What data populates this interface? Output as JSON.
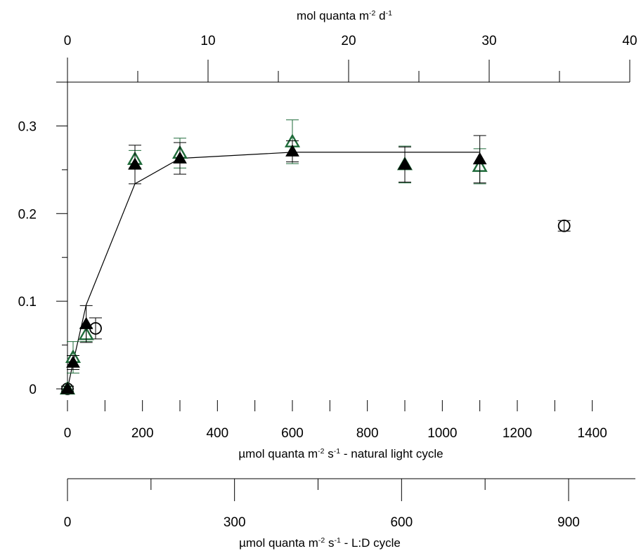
{
  "chart_data": {
    "type": "scatter",
    "title": "",
    "y_axis": {
      "ticks": [
        0,
        0.1,
        0.2,
        0.3
      ],
      "tick_labels": [
        "0",
        "0.1",
        "0.2",
        "0.3"
      ],
      "ylim": [
        0,
        0.35
      ]
    },
    "x_axis_natural": {
      "label": "µmol quanta m-2 s-1 - natural light cycle",
      "xlim": [
        0,
        1500
      ],
      "ticks": [
        0,
        200,
        400,
        600,
        800,
        1000,
        1200,
        1400
      ],
      "tick_labels": [
        "0",
        "200",
        "400",
        "600",
        "800",
        "1000",
        "1200",
        "1400"
      ]
    },
    "x_axis_top": {
      "label": "mol quanta m-2 d-1",
      "ticks": [
        0,
        10,
        20,
        30,
        40
      ],
      "tick_labels": [
        "0",
        "10",
        "20",
        "30",
        "40"
      ]
    },
    "x_axis_ld": {
      "label": "µmol quanta m-2 s-1 - L:D cycle",
      "ticks": [
        0,
        300,
        600,
        900
      ],
      "tick_labels": [
        "0",
        "300",
        "600",
        "900"
      ]
    },
    "series": [
      {
        "marker": "filled-triangle",
        "color": "#000000",
        "x": [
          0,
          15,
          50,
          180,
          300,
          600,
          900,
          1100
        ],
        "y": [
          0.0,
          0.03,
          0.074,
          0.256,
          0.263,
          0.271,
          0.256,
          0.262
        ],
        "err": [
          0.003,
          0.008,
          0.021,
          0.022,
          0.018,
          0.012,
          0.02,
          0.027
        ]
      },
      {
        "marker": "open-triangle",
        "color": "#1f6b3a",
        "x": [
          0,
          15,
          50,
          180,
          300,
          600,
          900,
          1100
        ],
        "y": [
          0.0,
          0.036,
          0.062,
          0.262,
          0.269,
          0.282,
          0.256,
          0.254
        ],
        "err": [
          0.003,
          0.018,
          0.008,
          0.01,
          0.017,
          0.025,
          0.021,
          0.02
        ]
      },
      {
        "marker": "open-circle",
        "color": "#000000",
        "x": [
          0,
          75,
          1325
        ],
        "y": [
          0.0,
          0.069,
          0.186
        ],
        "err": [
          0.003,
          0.012,
          0.006
        ]
      }
    ],
    "fit_line": {
      "color": "#000000",
      "x": [
        0,
        15,
        50,
        180,
        300,
        600,
        900,
        1100
      ],
      "y": [
        0.0,
        0.03,
        0.096,
        0.234,
        0.263,
        0.27,
        0.27,
        0.27
      ]
    }
  }
}
